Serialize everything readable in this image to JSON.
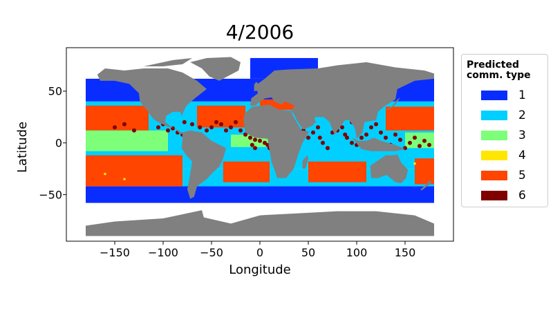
{
  "chart_data": {
    "type": "map",
    "title": "4/2006",
    "xlabel": "Longitude",
    "ylabel": "Latitude",
    "xlim": [
      -200,
      200
    ],
    "ylim": [
      -95,
      92
    ],
    "xticks": [
      "−150",
      "−100",
      "−50",
      "0",
      "50",
      "100",
      "150"
    ],
    "xtick_values": [
      -150,
      -100,
      -50,
      0,
      50,
      100,
      150
    ],
    "yticks": [
      "50",
      "0",
      "−50"
    ],
    "ytick_values": [
      50,
      0,
      -50
    ],
    "legend": {
      "title_line1": "Predicted",
      "title_line2": "comm. type",
      "placement": "outside-right",
      "entries": [
        {
          "label": "1",
          "color": "#0a2dff"
        },
        {
          "label": "2",
          "color": "#00cfff"
        },
        {
          "label": "3",
          "color": "#7dff7a"
        },
        {
          "label": "4",
          "color": "#ffe600"
        },
        {
          "label": "5",
          "color": "#ff4500"
        },
        {
          "label": "6",
          "color": "#800000"
        }
      ]
    },
    "land_color": "#808080",
    "ocean_background": "#ffffff"
  }
}
